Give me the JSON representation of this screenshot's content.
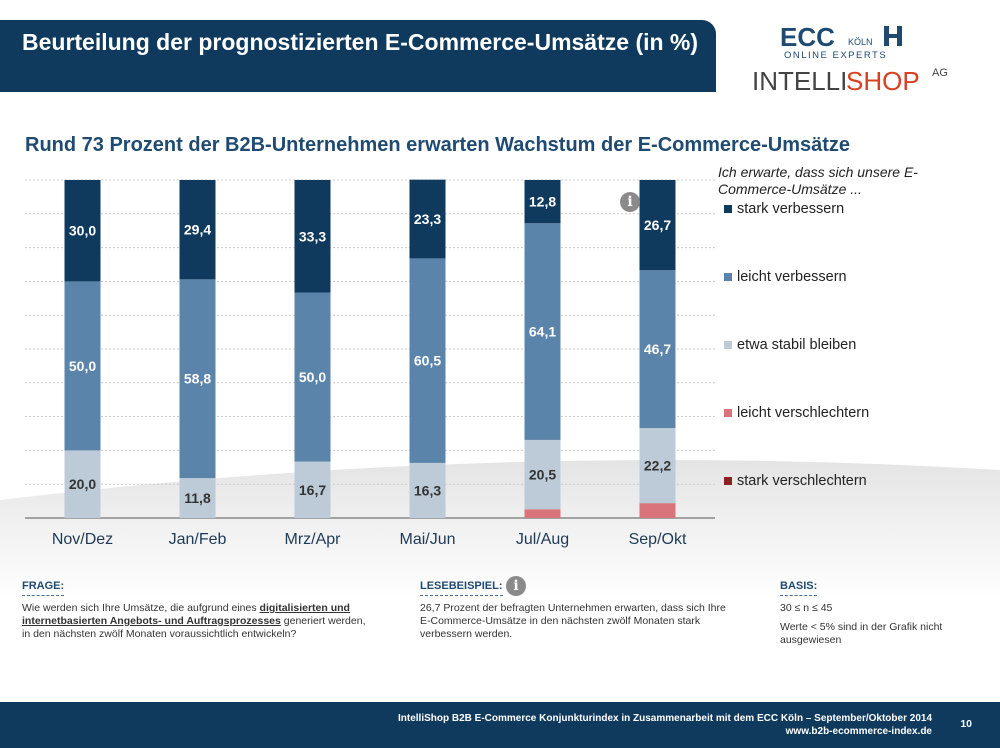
{
  "header": {
    "title": "Beurteilung der prognostizierten E-Commerce-Umsätze (in %)",
    "logo_ecc_text": "ECC",
    "logo_ecc_city": "KÖLN",
    "logo_ecc_sub": "ONLINE EXPERTS",
    "logo_intelli_1": "INTELLI",
    "logo_intelli_2": "SHOP",
    "logo_intelli_ag": "AG"
  },
  "subtitle": "Rund 73 Prozent der B2B-Unternehmen erwarten Wachstum der E-Commerce-Umsätze",
  "legend_intro": "Ich erwarte, dass sich unsere E-Commerce-Umsätze ...",
  "colors": {
    "stark_verbessern": "#0f3a5e",
    "leicht_verbessern": "#5b84ab",
    "etwa_stabil": "#bccbd7",
    "leicht_verschlechtern": "#d9757a",
    "stark_verschlechtern": "#8b2222",
    "brand_dark": "#0f3a5e"
  },
  "chart_data": {
    "type": "bar",
    "stacked": true,
    "categories": [
      "Nov/Dez",
      "Jan/Feb",
      "Mrz/Apr",
      "Mai/Jun",
      "Jul/Aug",
      "Sep/Okt"
    ],
    "series": [
      {
        "name": "stark verschlechtern",
        "values": [
          0,
          0,
          0,
          0,
          0,
          0
        ],
        "color_key": "stark_verschlechtern",
        "labels": [
          "",
          "",
          "",
          "",
          "",
          ""
        ]
      },
      {
        "name": "leicht verschlechtern",
        "values": [
          0,
          0,
          0,
          0,
          2.6,
          4.4
        ],
        "color_key": "leicht_verschlechtern",
        "labels": [
          "",
          "",
          "",
          "",
          "",
          ""
        ]
      },
      {
        "name": "etwa stabil bleiben",
        "values": [
          20.0,
          11.8,
          16.7,
          16.3,
          20.5,
          22.2
        ],
        "color_key": "etwa_stabil",
        "labels": [
          "20,0",
          "11,8",
          "16,7",
          "16,3",
          "20,5",
          "22,2"
        ]
      },
      {
        "name": "leicht verbessern",
        "values": [
          50.0,
          58.8,
          50.0,
          60.5,
          64.1,
          46.7
        ],
        "color_key": "leicht_verbessern",
        "labels": [
          "50,0",
          "58,8",
          "50,0",
          "60,5",
          "64,1",
          "46,7"
        ]
      },
      {
        "name": "stark verbessern",
        "values": [
          30.0,
          29.4,
          33.3,
          23.3,
          12.8,
          26.7
        ],
        "color_key": "stark_verbessern",
        "labels": [
          "30,0",
          "29,4",
          "33,3",
          "23,3",
          "12,8",
          "26,7"
        ]
      }
    ],
    "legend": [
      "stark verbessern",
      "leicht verbessern",
      "etwa stabil bleiben",
      "leicht verschlechtern",
      "stark verschlechtern"
    ],
    "ylim": [
      0,
      100
    ],
    "legend_position": "right",
    "grid": true
  },
  "footer": {
    "frage_head": "FRAGE:",
    "frage_text_1": "Wie werden sich Ihre Umsätze, die aufgrund eines ",
    "frage_text_bold": "digitalisierten und internetbasierten Angebots- und Auftragsprozesses",
    "frage_text_2": " generiert werden, in den nächsten zwölf Monaten voraussichtlich entwickeln?",
    "lese_head": "LESEBEISPIEL:",
    "lese_text": "26,7 Prozent der befragten Unternehmen erwarten, dass sich Ihre E-Commerce-Umsätze in den nächsten zwölf Monaten stark verbessern werden.",
    "basis_head": "BASIS:",
    "basis_n": "30 ≤ n ≤ 45",
    "basis_text": "Werte < 5% sind in der Grafik nicht ausgewiesen"
  },
  "bottom": {
    "line1": "IntelliShop B2B E-Commerce Konjunkturindex in Zusammenarbeit mit dem ECC Köln – September/Oktober 2014",
    "line2": "www.b2b-ecommerce-index.de",
    "page": "10"
  },
  "info_icon_glyph": "i"
}
